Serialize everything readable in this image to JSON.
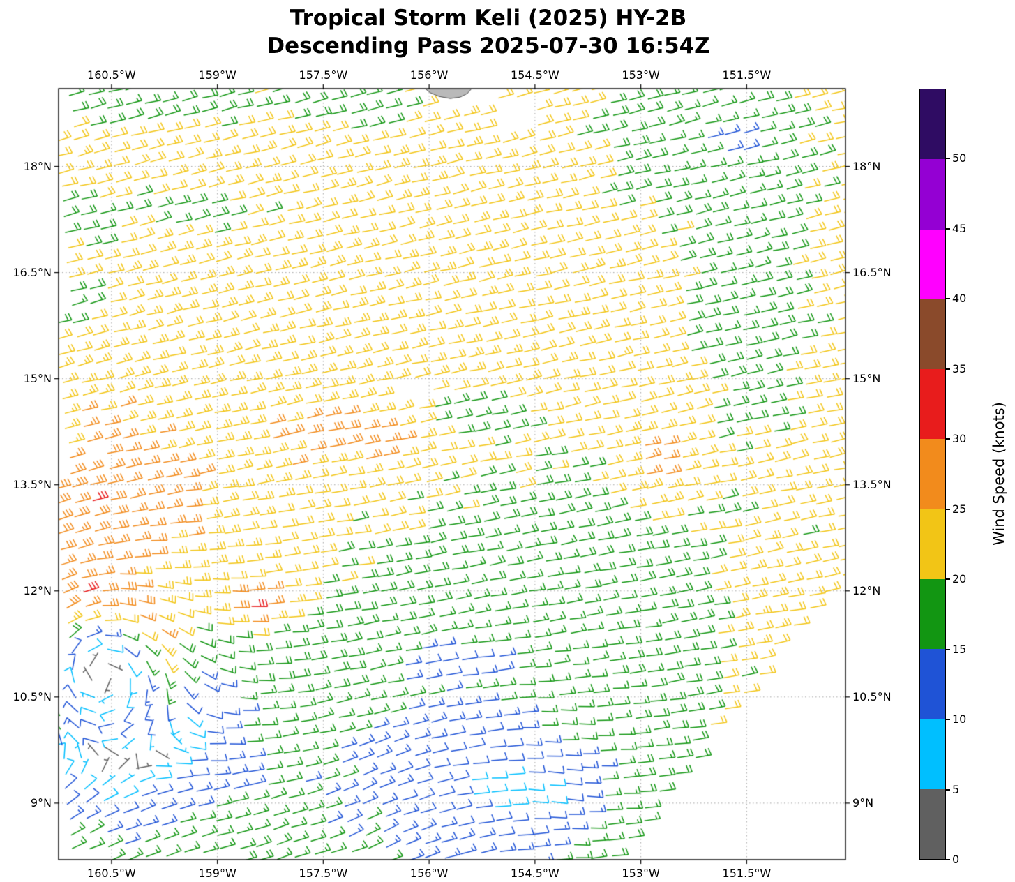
{
  "title": {
    "line1": "Tropical Storm Keli (2025) HY-2B",
    "line2": "Descending Pass 2025-07-30 16:54Z"
  },
  "axes": {
    "lon_min": -161.25,
    "lon_max": -150.1,
    "lat_min": 8.2,
    "lat_max": 19.1,
    "x_ticks": [
      {
        "label": "160.5°W",
        "lon": -160.5
      },
      {
        "label": "159°W",
        "lon": -159.0
      },
      {
        "label": "157.5°W",
        "lon": -157.5
      },
      {
        "label": "156°W",
        "lon": -156.0
      },
      {
        "label": "154.5°W",
        "lon": -154.5
      },
      {
        "label": "153°W",
        "lon": -153.0
      },
      {
        "label": "151.5°W",
        "lon": -151.5
      }
    ],
    "y_ticks": [
      {
        "label": "18°N",
        "lat": 18.0
      },
      {
        "label": "16.5°N",
        "lat": 16.5
      },
      {
        "label": "15°N",
        "lat": 15.0
      },
      {
        "label": "13.5°N",
        "lat": 13.5
      },
      {
        "label": "12°N",
        "lat": 12.0
      },
      {
        "label": "10.5°N",
        "lat": 10.5
      },
      {
        "label": "9°N",
        "lat": 9.0
      }
    ]
  },
  "colorbar": {
    "label": "Wind Speed (knots)",
    "tick_labels": [
      "0",
      "5",
      "10",
      "15",
      "20",
      "25",
      "30",
      "35",
      "40",
      "45",
      "50"
    ],
    "levels_kt": [
      0,
      5,
      10,
      15,
      20,
      25,
      30,
      35,
      40,
      45,
      50,
      55
    ],
    "colors": [
      "#606060",
      "#00bfff",
      "#1f53d6",
      "#129612",
      "#f2c516",
      "#f28b1c",
      "#e81c1c",
      "#8a4a2b",
      "#ff00ff",
      "#9400d3",
      "#2f0c63"
    ]
  },
  "chart_data": {
    "type": "wind_barb_map",
    "units": "knots",
    "speed_bin_edges_kt": [
      0,
      5,
      10,
      15,
      20,
      25,
      30,
      35,
      40,
      45,
      50,
      55
    ],
    "grid": {
      "origin_lon": -161.5,
      "origin_lat": 7.45,
      "along_unit": [
        0.995,
        0.1
      ],
      "cross_unit": [
        -0.1,
        0.995
      ],
      "step_along_deg": 0.262,
      "step_cross_deg": 0.212,
      "n_along": 50,
      "n_cross": 58
    },
    "swath_right_edge": {
      "full_coverage_above_lat": 12.2,
      "lon_at_reference_lat": -150.2,
      "westward_shift_per_deg": 0.78
    },
    "data_voids": [
      {
        "lon": -155.73,
        "lat": 19.02,
        "rx": 0.5,
        "ry": 0.22
      },
      {
        "lon": -154.75,
        "lat": 18.7,
        "rx": 0.3,
        "ry": 0.25
      },
      {
        "lon": -160.85,
        "lat": 13.85,
        "rx": 0.22,
        "ry": 0.13
      },
      {
        "lon": -156.3,
        "lat": 14.75,
        "rx": 0.3,
        "ry": 0.17
      },
      {
        "lon": -159.05,
        "lat": 10.5,
        "rx": 0.2,
        "ry": 0.15
      }
    ],
    "land_polygon": [
      [
        -156.08,
        19.12
      ],
      [
        -155.98,
        19.04
      ],
      [
        -155.86,
        18.99
      ],
      [
        -155.7,
        18.96
      ],
      [
        -155.56,
        18.98
      ],
      [
        -155.46,
        19.03
      ],
      [
        -155.38,
        19.12
      ]
    ],
    "wind_field": {
      "background": {
        "speed_kt": 21,
        "direction_from_deg": 75
      },
      "vortices": [
        {
          "name": "tropical-storm-keli-center",
          "lon": -160.7,
          "lat": 10.95,
          "max_wind_kt": 22,
          "radius_deg": 1.0,
          "decay_exp": 1.6,
          "background_damp": 0.88,
          "damp_radius_deg": 1.5
        },
        {
          "name": "weak-southern-gyre",
          "lon": -155.4,
          "lat": 9.2,
          "max_wind_kt": 4,
          "radius_deg": 1.6,
          "decay_exp": 1.2,
          "background_damp": 0,
          "damp_radius_deg": 1
        }
      ],
      "speed_bumps": [
        {
          "name": "orange-patch-central",
          "lon": -157.2,
          "lat": 14.15,
          "amp_kt": 6.5,
          "sx": 0.9,
          "sy": 0.38
        },
        {
          "name": "orange-patch-east",
          "lon": -152.75,
          "lat": 13.8,
          "amp_kt": 6.5,
          "sx": 0.55,
          "sy": 0.5
        },
        {
          "name": "orange-band-west",
          "lon": -160.3,
          "lat": 13.1,
          "amp_kt": 2.5,
          "sx": 1.0,
          "sy": 0.95
        },
        {
          "name": "orange-west-edge",
          "lon": -160.9,
          "lat": 13.4,
          "amp_kt": 3.0,
          "sx": 0.6,
          "sy": 0.5
        },
        {
          "name": "red-streak",
          "lon": -158.6,
          "lat": 11.8,
          "amp_kt": 10.0,
          "sx": 0.55,
          "sy": 0.28
        },
        {
          "name": "yellow-right-edge",
          "lon": -151.4,
          "lat": 11.9,
          "amp_kt": 3.0,
          "sx": 0.5,
          "sy": 1.0
        },
        {
          "name": "green-band-east",
          "lon": -151.6,
          "lat": 16.6,
          "amp_kt": -5.0,
          "sx": 0.75,
          "sy": 2.2
        },
        {
          "name": "green-top-right",
          "lon": -152.3,
          "lat": 18.3,
          "amp_kt": -5.0,
          "sx": 1.4,
          "sy": 0.8
        },
        {
          "name": "green-top-left",
          "lon": -159.9,
          "lat": 18.95,
          "amp_kt": -5.0,
          "sx": 1.6,
          "sy": 0.45
        },
        {
          "name": "green-top-center",
          "lon": -157.0,
          "lat": 18.85,
          "amp_kt": -4.0,
          "sx": 1.0,
          "sy": 0.35
        },
        {
          "name": "green-left-edge-mid",
          "lon": -161.0,
          "lat": 16.1,
          "amp_kt": -5.0,
          "sx": 0.45,
          "sy": 0.6
        },
        {
          "name": "green-streak-nw",
          "lon": -159.3,
          "lat": 17.35,
          "amp_kt": -4.0,
          "sx": 1.2,
          "sy": 0.3
        },
        {
          "name": "green-patch-mid",
          "lon": -155.4,
          "lat": 14.5,
          "amp_kt": -5.0,
          "sx": 0.7,
          "sy": 0.3
        },
        {
          "name": "green-region-south-east",
          "lon": -154.9,
          "lat": 12.0,
          "amp_kt": -5.5,
          "sx": 2.8,
          "sy": 1.7
        },
        {
          "name": "green-left-edge-upper",
          "lon": -160.9,
          "lat": 17.3,
          "amp_kt": -4.5,
          "sx": 0.5,
          "sy": 0.4
        }
      ],
      "damp_regions": [
        {
          "name": "light-wind-trough-south",
          "lon": -155.6,
          "lat": 9.6,
          "factor": 0.45,
          "sx": 2.3,
          "sy": 1.5
        },
        {
          "name": "cyan-core-south",
          "lon": -154.6,
          "lat": 9.1,
          "factor": 0.32,
          "sx": 0.8,
          "sy": 0.45
        },
        {
          "name": "cyan-streak-11n",
          "lon": -155.7,
          "lat": 10.95,
          "factor": 0.4,
          "sx": 0.7,
          "sy": 0.22
        }
      ]
    }
  }
}
